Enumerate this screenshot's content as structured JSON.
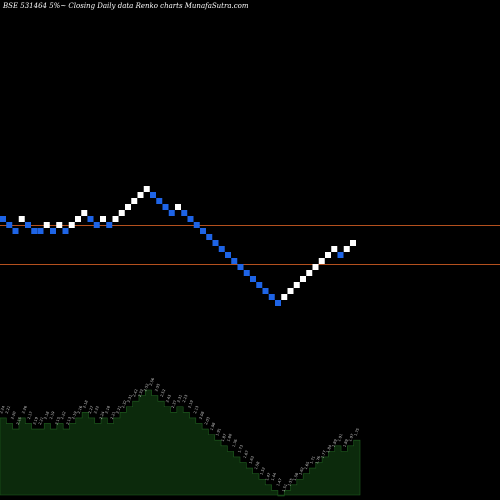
{
  "chart_data": {
    "type": "renko",
    "title": "BSE 531464  5%~  Closing Daily data  Renko  charts MunafaSutra.com",
    "header_color": "#ffffff",
    "colors": {
      "up_brick": "#ffffff",
      "down_brick": "#1e64e6",
      "ref_line": "#b4501e",
      "volume_fill": "#0c2a0c",
      "volume_line": "#1f5e1f",
      "volume_label": "#cfcfcf"
    },
    "grid": false,
    "legend": "none",
    "price_range": [
      1.32,
      2.55
    ],
    "reference_lines": [
      2.1,
      1.84
    ],
    "bricks": [
      {
        "dir": "down",
        "y": 2.14
      },
      {
        "dir": "down",
        "y": 2.1
      },
      {
        "dir": "down",
        "y": 2.06
      },
      {
        "dir": "up",
        "y": 2.14
      },
      {
        "dir": "down",
        "y": 2.1
      },
      {
        "dir": "down",
        "y": 2.06
      },
      {
        "dir": "down",
        "y": 2.06
      },
      {
        "dir": "up",
        "y": 2.1
      },
      {
        "dir": "down",
        "y": 2.06
      },
      {
        "dir": "up",
        "y": 2.1
      },
      {
        "dir": "down",
        "y": 2.06
      },
      {
        "dir": "up",
        "y": 2.1
      },
      {
        "dir": "up",
        "y": 2.14
      },
      {
        "dir": "up",
        "y": 2.18
      },
      {
        "dir": "down",
        "y": 2.14
      },
      {
        "dir": "down",
        "y": 2.1
      },
      {
        "dir": "up",
        "y": 2.14
      },
      {
        "dir": "down",
        "y": 2.1
      },
      {
        "dir": "up",
        "y": 2.14
      },
      {
        "dir": "up",
        "y": 2.18
      },
      {
        "dir": "up",
        "y": 2.22
      },
      {
        "dir": "up",
        "y": 2.26
      },
      {
        "dir": "up",
        "y": 2.3
      },
      {
        "dir": "up",
        "y": 2.34
      },
      {
        "dir": "down",
        "y": 2.3
      },
      {
        "dir": "down",
        "y": 2.26
      },
      {
        "dir": "down",
        "y": 2.22
      },
      {
        "dir": "down",
        "y": 2.18
      },
      {
        "dir": "up",
        "y": 2.22
      },
      {
        "dir": "down",
        "y": 2.18
      },
      {
        "dir": "down",
        "y": 2.14
      },
      {
        "dir": "down",
        "y": 2.1
      },
      {
        "dir": "down",
        "y": 2.06
      },
      {
        "dir": "down",
        "y": 2.02
      },
      {
        "dir": "down",
        "y": 1.98
      },
      {
        "dir": "down",
        "y": 1.94
      },
      {
        "dir": "down",
        "y": 1.9
      },
      {
        "dir": "down",
        "y": 1.86
      },
      {
        "dir": "down",
        "y": 1.82
      },
      {
        "dir": "down",
        "y": 1.78
      },
      {
        "dir": "down",
        "y": 1.74
      },
      {
        "dir": "down",
        "y": 1.7
      },
      {
        "dir": "down",
        "y": 1.66
      },
      {
        "dir": "down",
        "y": 1.62
      },
      {
        "dir": "down",
        "y": 1.58
      },
      {
        "dir": "up",
        "y": 1.62
      },
      {
        "dir": "up",
        "y": 1.66
      },
      {
        "dir": "up",
        "y": 1.7
      },
      {
        "dir": "up",
        "y": 1.74
      },
      {
        "dir": "up",
        "y": 1.78
      },
      {
        "dir": "up",
        "y": 1.82
      },
      {
        "dir": "up",
        "y": 1.86
      },
      {
        "dir": "up",
        "y": 1.9
      },
      {
        "dir": "up",
        "y": 1.94
      },
      {
        "dir": "down",
        "y": 1.9
      },
      {
        "dir": "up",
        "y": 1.94
      },
      {
        "dir": "up",
        "y": 1.98
      }
    ],
    "volume_labels": [
      "2.24",
      "2.21",
      "2.20",
      "2.15",
      "2.26",
      "2.17",
      "2.19",
      "2.21",
      "2.18",
      "2.19",
      "2.15",
      "2.22",
      "2.13",
      "2.19",
      "2.16",
      "2.18",
      "2.27",
      "2.22",
      "2.24",
      "2.18",
      "2.21",
      "2.21",
      "2.32",
      "2.31",
      "2.42",
      "2.32",
      "2.52",
      "2.56",
      "2.55",
      "2.52",
      "2.43",
      "2.37",
      "2.31",
      "2.23",
      "2.19",
      "2.13",
      "2.08",
      "2.03",
      "1.98",
      "1.91",
      "1.87",
      "1.80",
      "1.76",
      "1.73",
      "1.67",
      "1.63",
      "1.58",
      "1.52",
      "1.47",
      "1.44",
      "1.47",
      "1.51",
      "1.55",
      "1.58",
      "1.62",
      "1.65",
      "1.71",
      "1.76",
      "1.77",
      "1.84",
      "1.89",
      "1.91",
      "1.89",
      "1.97",
      "1.75"
    ]
  }
}
